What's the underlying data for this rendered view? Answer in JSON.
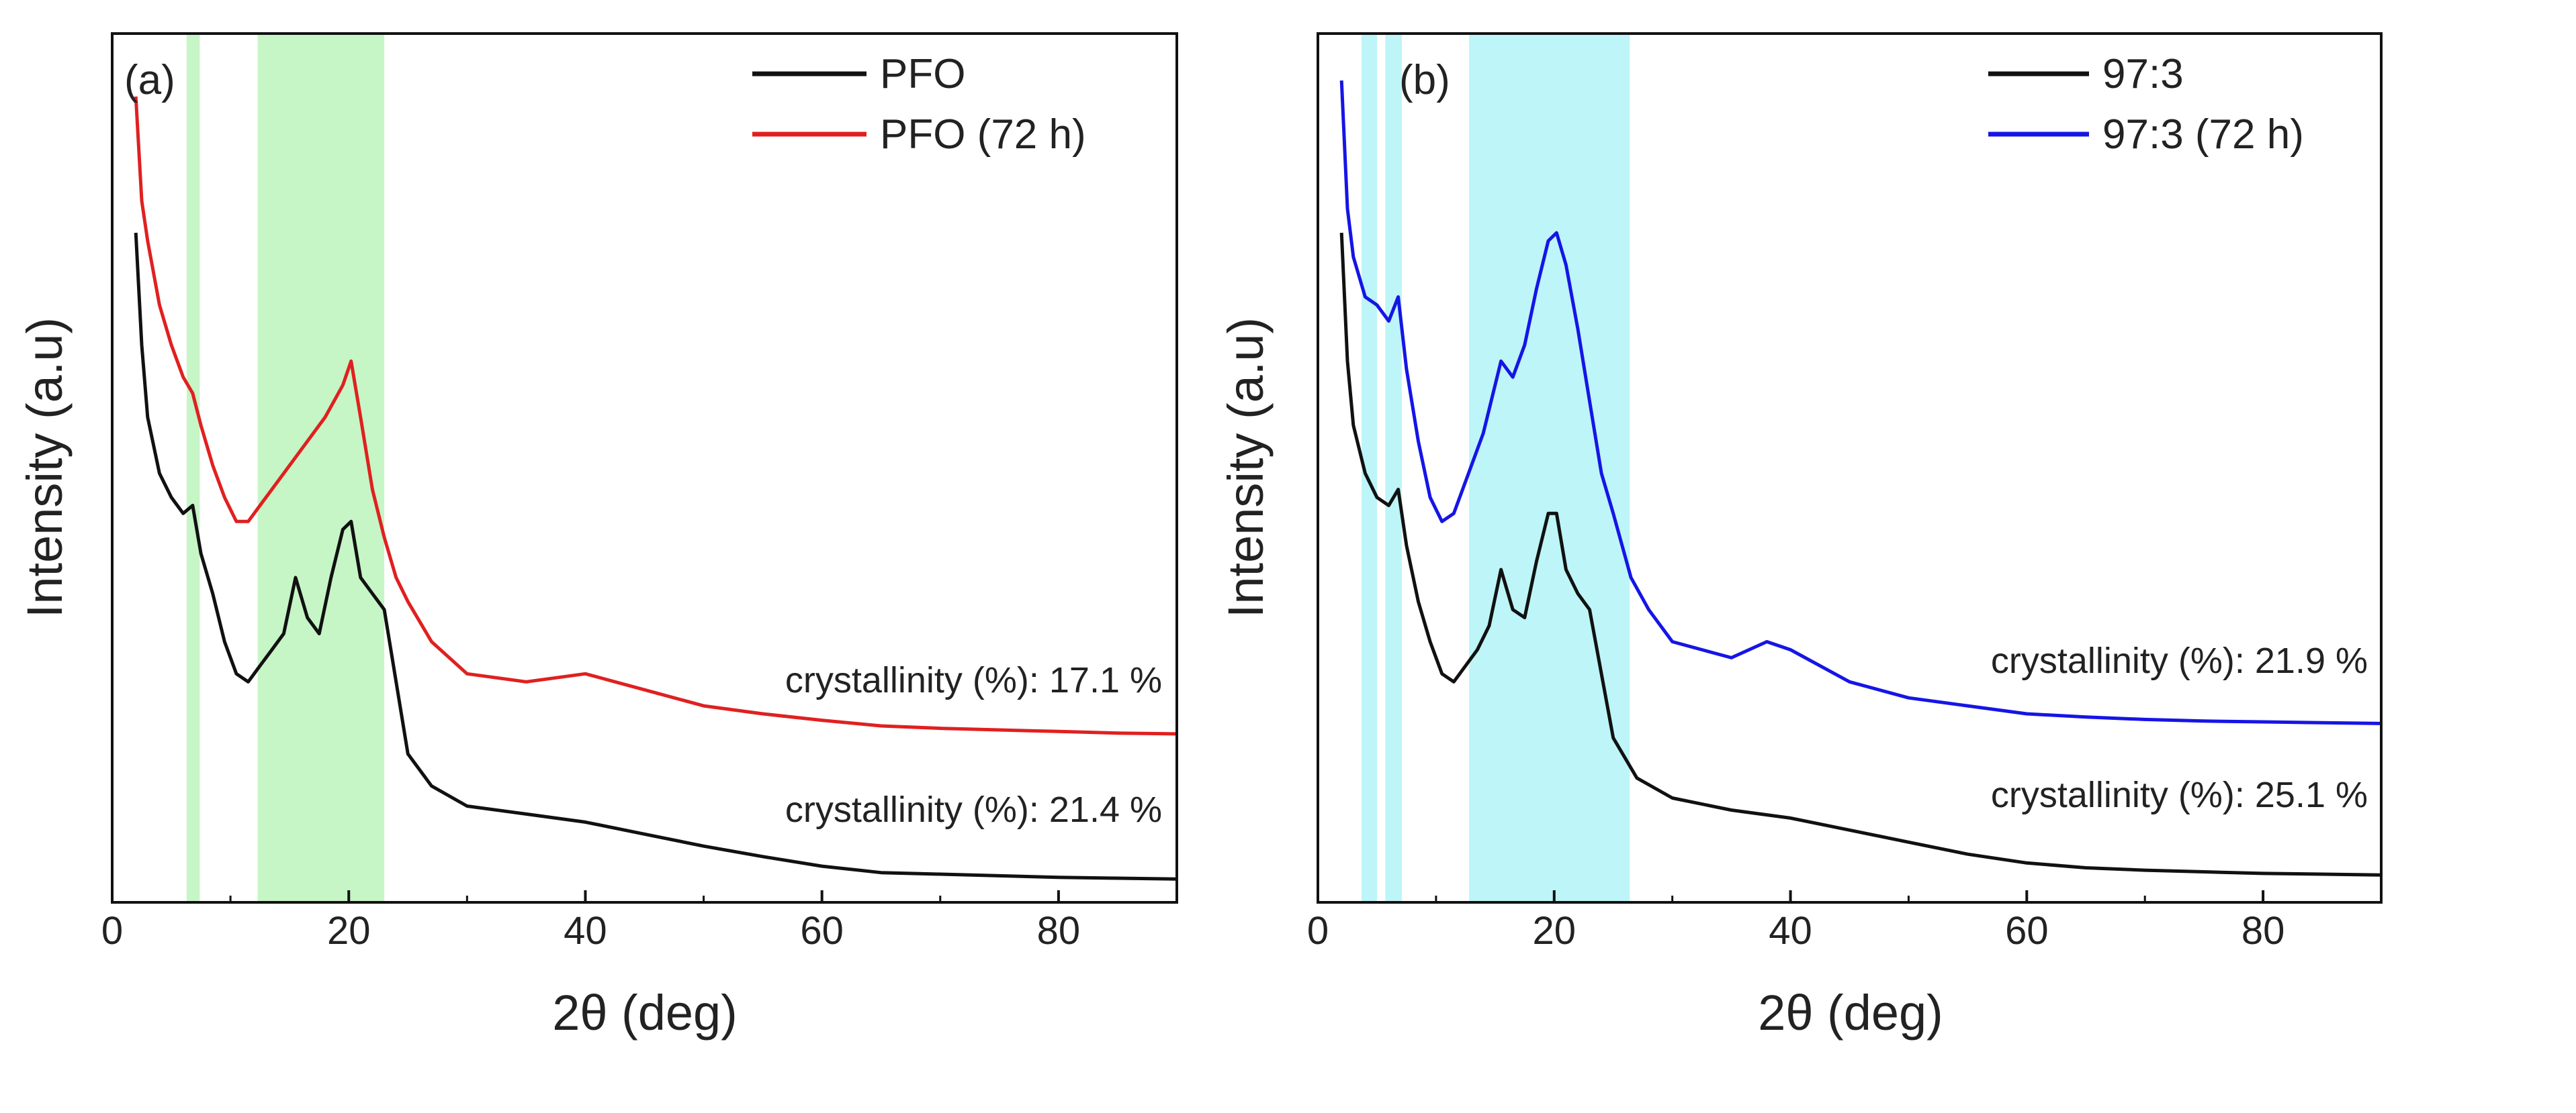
{
  "chart_data": [
    {
      "type": "line",
      "panel_label": "(a)",
      "xlabel": "2θ (deg)",
      "ylabel": "Intensity (a.u)",
      "xlim": [
        0,
        90
      ],
      "ylim": [
        0,
        100
      ],
      "xticks": [
        "0",
        "20",
        "40",
        "60",
        "80"
      ],
      "xtick_values": [
        0,
        20,
        40,
        60,
        80
      ],
      "shaded_bands": [
        [
          6.3,
          7.4
        ],
        [
          12.3,
          23.0
        ]
      ],
      "band_color": "#c6f5c6",
      "series": [
        {
          "name": "PFO",
          "color": "#111111",
          "x": [
            2.0,
            2.5,
            3.0,
            4.0,
            5.0,
            6.0,
            6.8,
            7.5,
            8.5,
            9.5,
            10.5,
            11.5,
            12.5,
            13.5,
            14.5,
            15.5,
            16.5,
            17.5,
            18.5,
            19.5,
            20.2,
            21.0,
            22.0,
            23.0,
            24.0,
            25.0,
            27.0,
            30.0,
            35.0,
            40.0,
            45.0,
            50.0,
            55.0,
            60.0,
            65.0,
            70.0,
            75.0,
            80.0,
            85.0,
            90.0
          ],
          "values": [
            81,
            67,
            58,
            51,
            48,
            46,
            47,
            41,
            36,
            30,
            26,
            25,
            27,
            29,
            31,
            38,
            33,
            31,
            38,
            44,
            45,
            38,
            36,
            34,
            25,
            16,
            12,
            9.5,
            8.5,
            7.5,
            6,
            4.5,
            3.2,
            2.0,
            1.2,
            1.0,
            0.8,
            0.6,
            0.5,
            0.4
          ]
        },
        {
          "name": "PFO (72 h)",
          "color": "#e02020",
          "x": [
            2.0,
            2.5,
            3.0,
            4.0,
            5.0,
            6.0,
            6.8,
            7.5,
            8.5,
            9.5,
            10.5,
            11.5,
            12.5,
            14.0,
            16.0,
            18.0,
            19.5,
            20.2,
            21.0,
            22.0,
            23.0,
            24.0,
            25.0,
            27.0,
            30.0,
            35.0,
            40.0,
            45.0,
            50.0,
            55.0,
            60.0,
            65.0,
            70.0,
            75.0,
            80.0,
            85.0,
            90.0
          ],
          "values": [
            98,
            85,
            80,
            72,
            67,
            63,
            61,
            57,
            52,
            48,
            45,
            45,
            47,
            50,
            54,
            58,
            62,
            65,
            58,
            49,
            43,
            38,
            35,
            30,
            26,
            25,
            26,
            24,
            22,
            21,
            20.2,
            19.5,
            19.2,
            19,
            18.8,
            18.6,
            18.5
          ]
        }
      ],
      "annotations": [
        "crystallinity (%): 17.1 %",
        "crystallinity (%): 21.4 %"
      ]
    },
    {
      "type": "line",
      "panel_label": "(b)",
      "xlabel": "2θ (deg)",
      "ylabel": "Intensity (a.u)",
      "xlim": [
        0,
        90
      ],
      "ylim": [
        0,
        100
      ],
      "xticks": [
        "0",
        "20",
        "40",
        "60",
        "80"
      ],
      "xtick_values": [
        0,
        20,
        40,
        60,
        80
      ],
      "shaded_bands": [
        [
          3.7,
          5.0
        ],
        [
          5.7,
          7.1
        ],
        [
          12.8,
          26.4
        ]
      ],
      "band_color": "#bdf5f8",
      "series": [
        {
          "name": "97:3",
          "color": "#111111",
          "x": [
            2.0,
            2.5,
            3.0,
            4.0,
            5.0,
            6.0,
            6.8,
            7.5,
            8.5,
            9.5,
            10.5,
            11.5,
            12.5,
            13.5,
            14.5,
            15.5,
            16.5,
            17.5,
            18.5,
            19.5,
            20.2,
            21.0,
            22.0,
            23.0,
            24.0,
            25.0,
            27.0,
            30.0,
            35.0,
            40.0,
            45.0,
            50.0,
            55.0,
            60.0,
            65.0,
            70.0,
            75.0,
            80.0,
            85.0,
            90.0
          ],
          "values": [
            81,
            65,
            57,
            51,
            48,
            47,
            49,
            42,
            35,
            30,
            26,
            25,
            27,
            29,
            32,
            39,
            34,
            33,
            40,
            46,
            46,
            39,
            36,
            34,
            26,
            18,
            13,
            10.5,
            9,
            8,
            6.5,
            5,
            3.5,
            2.4,
            1.8,
            1.5,
            1.3,
            1.1,
            1.0,
            0.9
          ]
        },
        {
          "name": "97:3 (72 h)",
          "color": "#1515e6",
          "x": [
            2.0,
            2.5,
            3.0,
            4.0,
            5.0,
            6.0,
            6.8,
            7.5,
            8.5,
            9.5,
            10.5,
            11.5,
            12.5,
            14.0,
            15.5,
            16.5,
            17.5,
            18.5,
            19.5,
            20.2,
            21.0,
            22.0,
            23.0,
            24.0,
            25.0,
            26.5,
            28.0,
            30.0,
            35.0,
            38.0,
            40.0,
            45.0,
            50.0,
            55.0,
            60.0,
            65.0,
            70.0,
            75.0,
            80.0,
            85.0,
            90.0
          ],
          "values": [
            100,
            84,
            78,
            73,
            72,
            70,
            73,
            64,
            55,
            48,
            45,
            46,
            50,
            56,
            65,
            63,
            67,
            74,
            80,
            81,
            77,
            69,
            60,
            51,
            46,
            38,
            34,
            30,
            28,
            30,
            29,
            25,
            23,
            22,
            21,
            20.6,
            20.3,
            20.1,
            20,
            19.9,
            19.8
          ]
        }
      ],
      "annotations": [
        "crystallinity (%): 21.9 %",
        "crystallinity (%): 25.1 %"
      ]
    }
  ]
}
